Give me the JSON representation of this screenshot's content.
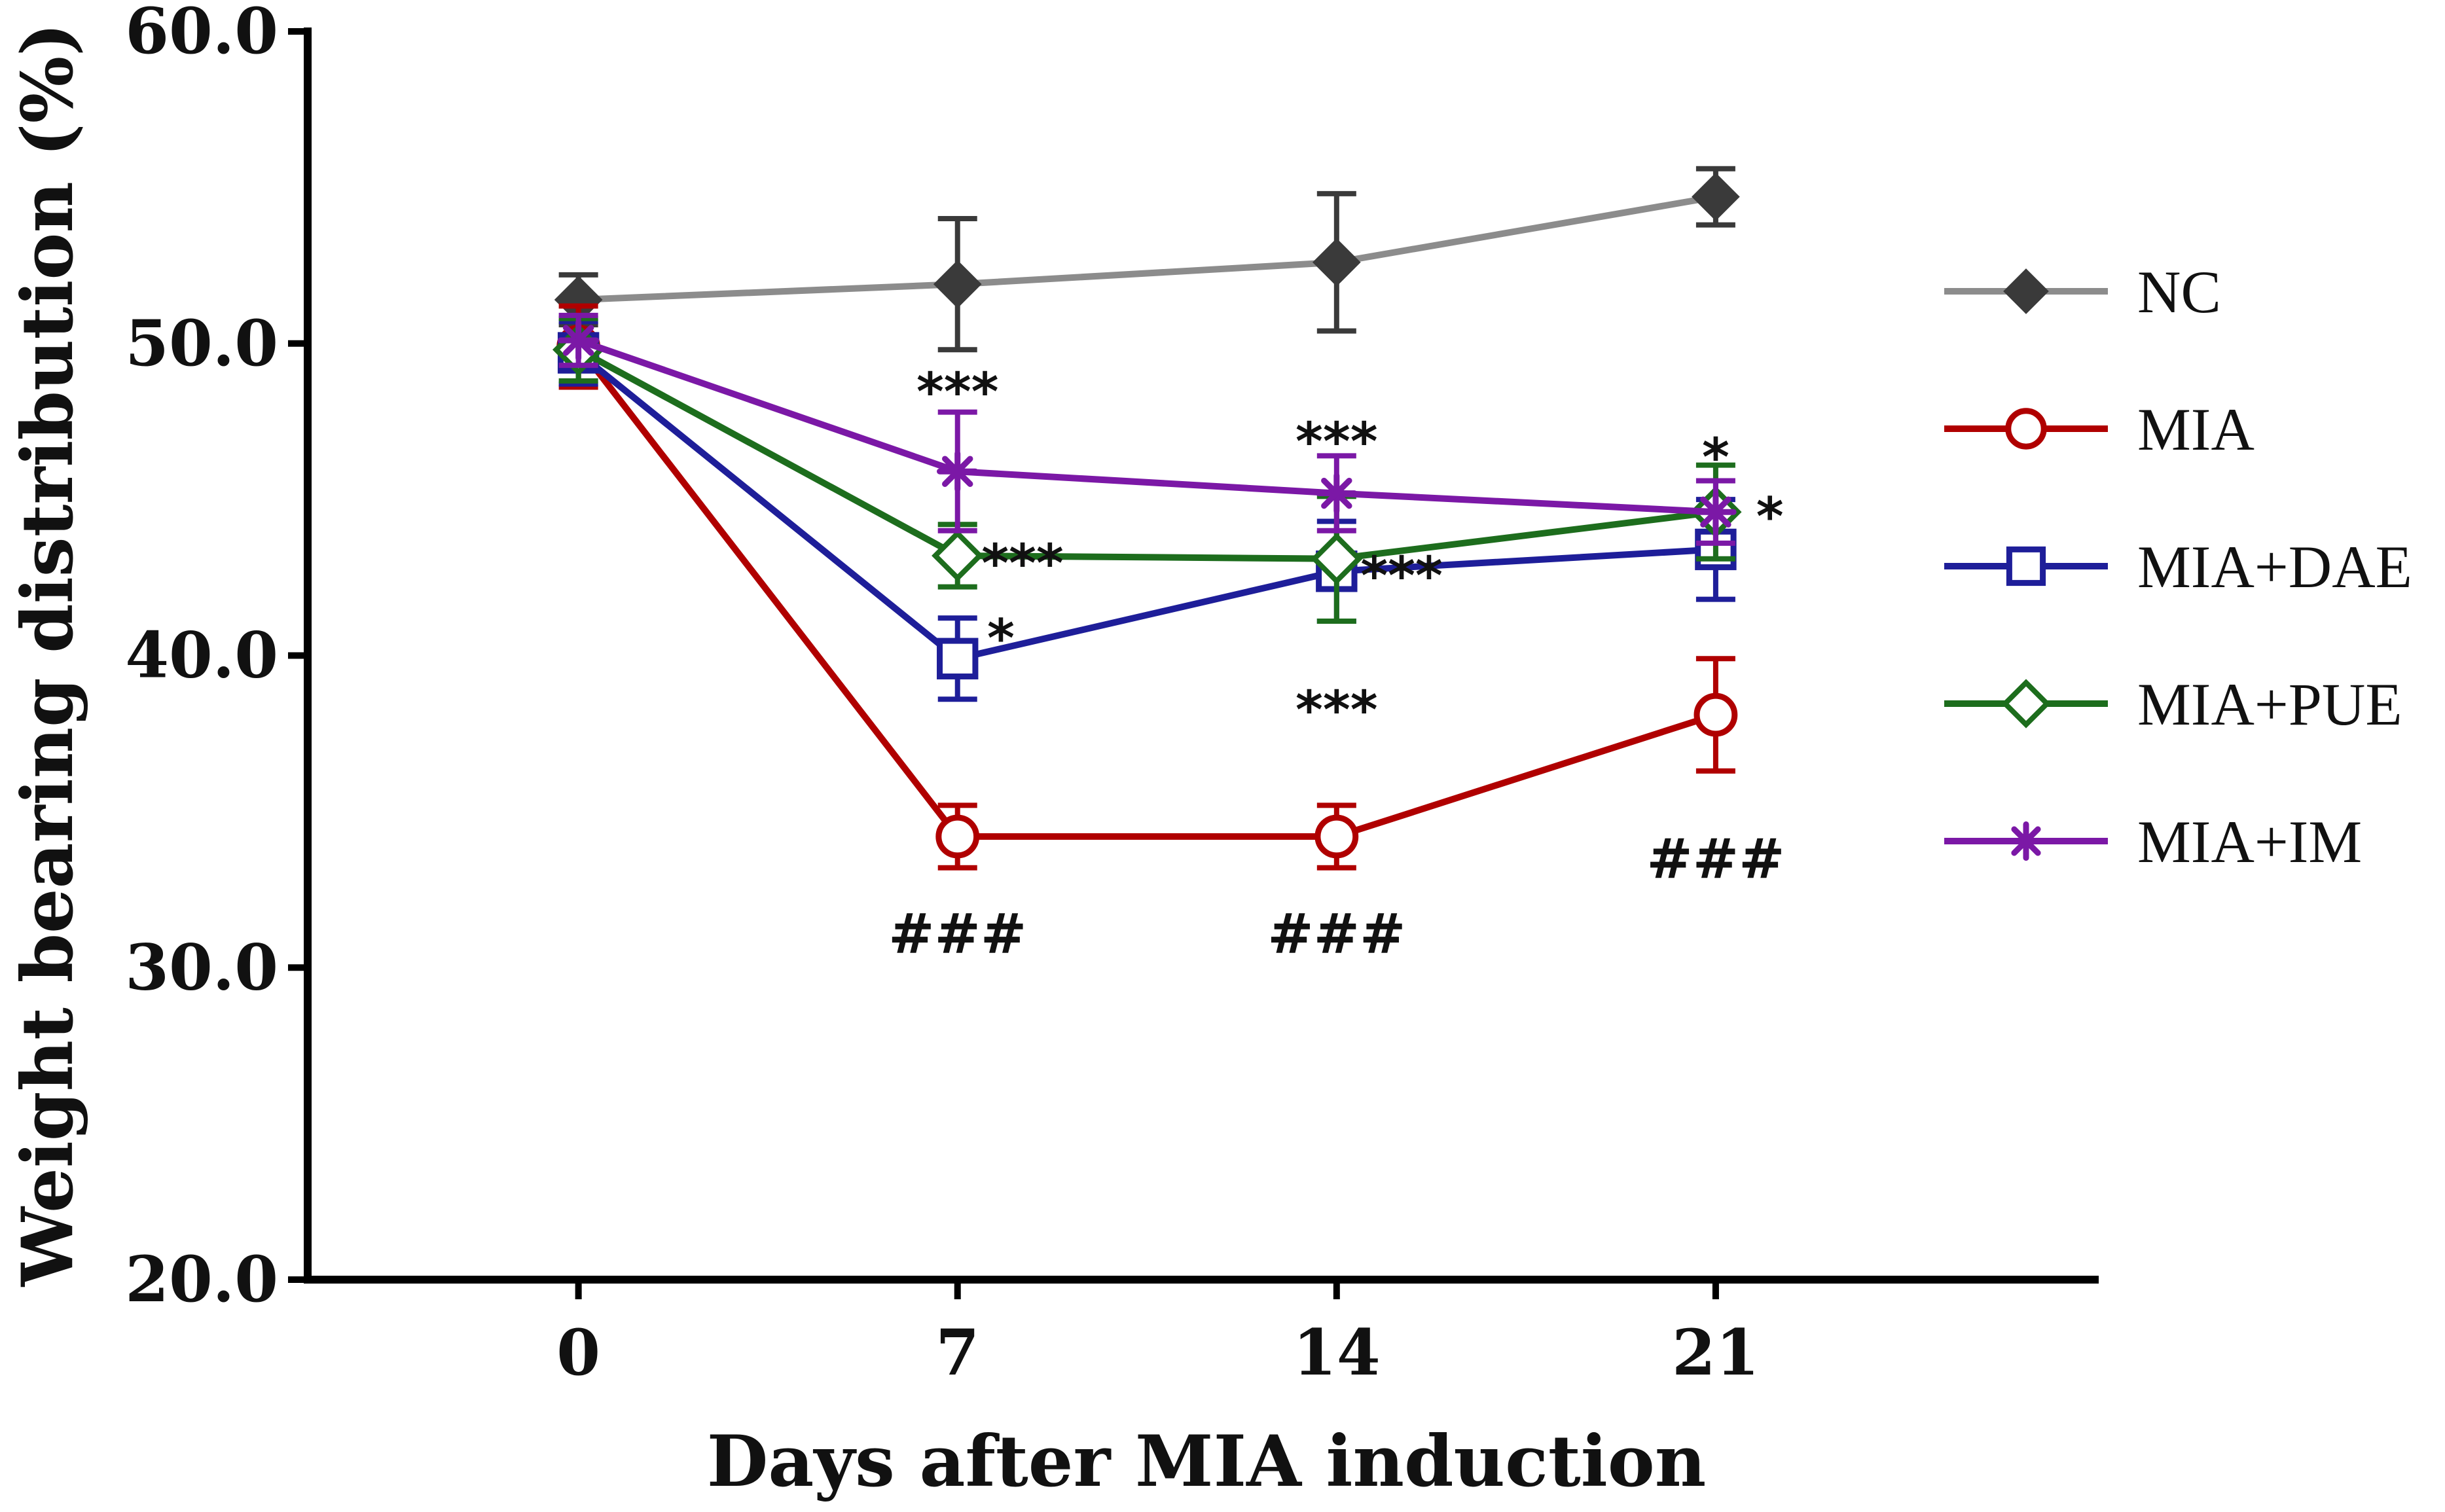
{
  "chart_data": {
    "type": "line",
    "title": "",
    "xlabel": "Days after MIA induction",
    "ylabel": "Weight bearing distribution (%)",
    "x": [
      0,
      7,
      14,
      21
    ],
    "x_tick_labels": [
      "0",
      "7",
      "14",
      "21"
    ],
    "xlim": [
      -5,
      28
    ],
    "ylim": [
      20,
      60
    ],
    "y_ticks": [
      20,
      30,
      40,
      50,
      60
    ],
    "y_tick_labels": [
      "20.0",
      "30.0",
      "40.0",
      "50.0",
      "60.0"
    ],
    "grid": false,
    "legend_position": "right",
    "series": [
      {
        "name": "NC",
        "color": "#8c8c8c",
        "marker_color": "#3a3a3a",
        "marker": "filled-diamond",
        "values": [
          51.4,
          51.9,
          52.6,
          54.7
        ],
        "errors": [
          0.8,
          2.1,
          2.2,
          0.9
        ]
      },
      {
        "name": "MIA",
        "color": "#b00000",
        "marker_color": "#b00000",
        "marker": "open-circle",
        "values": [
          49.9,
          34.2,
          34.2,
          38.1
        ],
        "errors": [
          1.3,
          1.0,
          1.0,
          1.8
        ]
      },
      {
        "name": "MIA+DAE",
        "color": "#1e1e99",
        "marker_color": "#1e1e99",
        "marker": "open-square",
        "values": [
          49.7,
          39.9,
          42.7,
          43.4
        ],
        "errors": [
          1.0,
          1.3,
          1.6,
          1.6
        ]
      },
      {
        "name": "MIA+PUE",
        "color": "#1d6d1d",
        "marker_color": "#1d6d1d",
        "marker": "open-diamond",
        "values": [
          49.8,
          43.2,
          43.1,
          44.6
        ],
        "errors": [
          1.0,
          1.0,
          2.0,
          1.5
        ]
      },
      {
        "name": "MIA+IM",
        "color": "#7b18a6",
        "marker_color": "#7b18a6",
        "marker": "asterisk",
        "values": [
          50.1,
          45.9,
          45.2,
          44.6
        ],
        "errors": [
          0.8,
          1.9,
          1.2,
          1.0
        ]
      }
    ],
    "annotations": [
      {
        "text": "***",
        "x": 7,
        "y": 48.5,
        "kind": "star"
      },
      {
        "text": "***",
        "x": 8.2,
        "y": 43.0,
        "kind": "star"
      },
      {
        "text": "*",
        "x": 7.8,
        "y": 40.6,
        "kind": "star"
      },
      {
        "text": "###",
        "x": 7,
        "y": 31.1,
        "kind": "hash"
      },
      {
        "text": "***",
        "x": 14,
        "y": 46.9,
        "kind": "star"
      },
      {
        "text": "***",
        "x": 15.2,
        "y": 42.6,
        "kind": "star"
      },
      {
        "text": "***",
        "x": 14,
        "y": 38.3,
        "kind": "star"
      },
      {
        "text": "###",
        "x": 14,
        "y": 31.1,
        "kind": "hash"
      },
      {
        "text": "*",
        "x": 21,
        "y": 46.4,
        "kind": "star"
      },
      {
        "text": "*",
        "x": 22.0,
        "y": 44.5,
        "kind": "star"
      },
      {
        "text": "###",
        "x": 21,
        "y": 33.5,
        "kind": "hash"
      }
    ]
  }
}
